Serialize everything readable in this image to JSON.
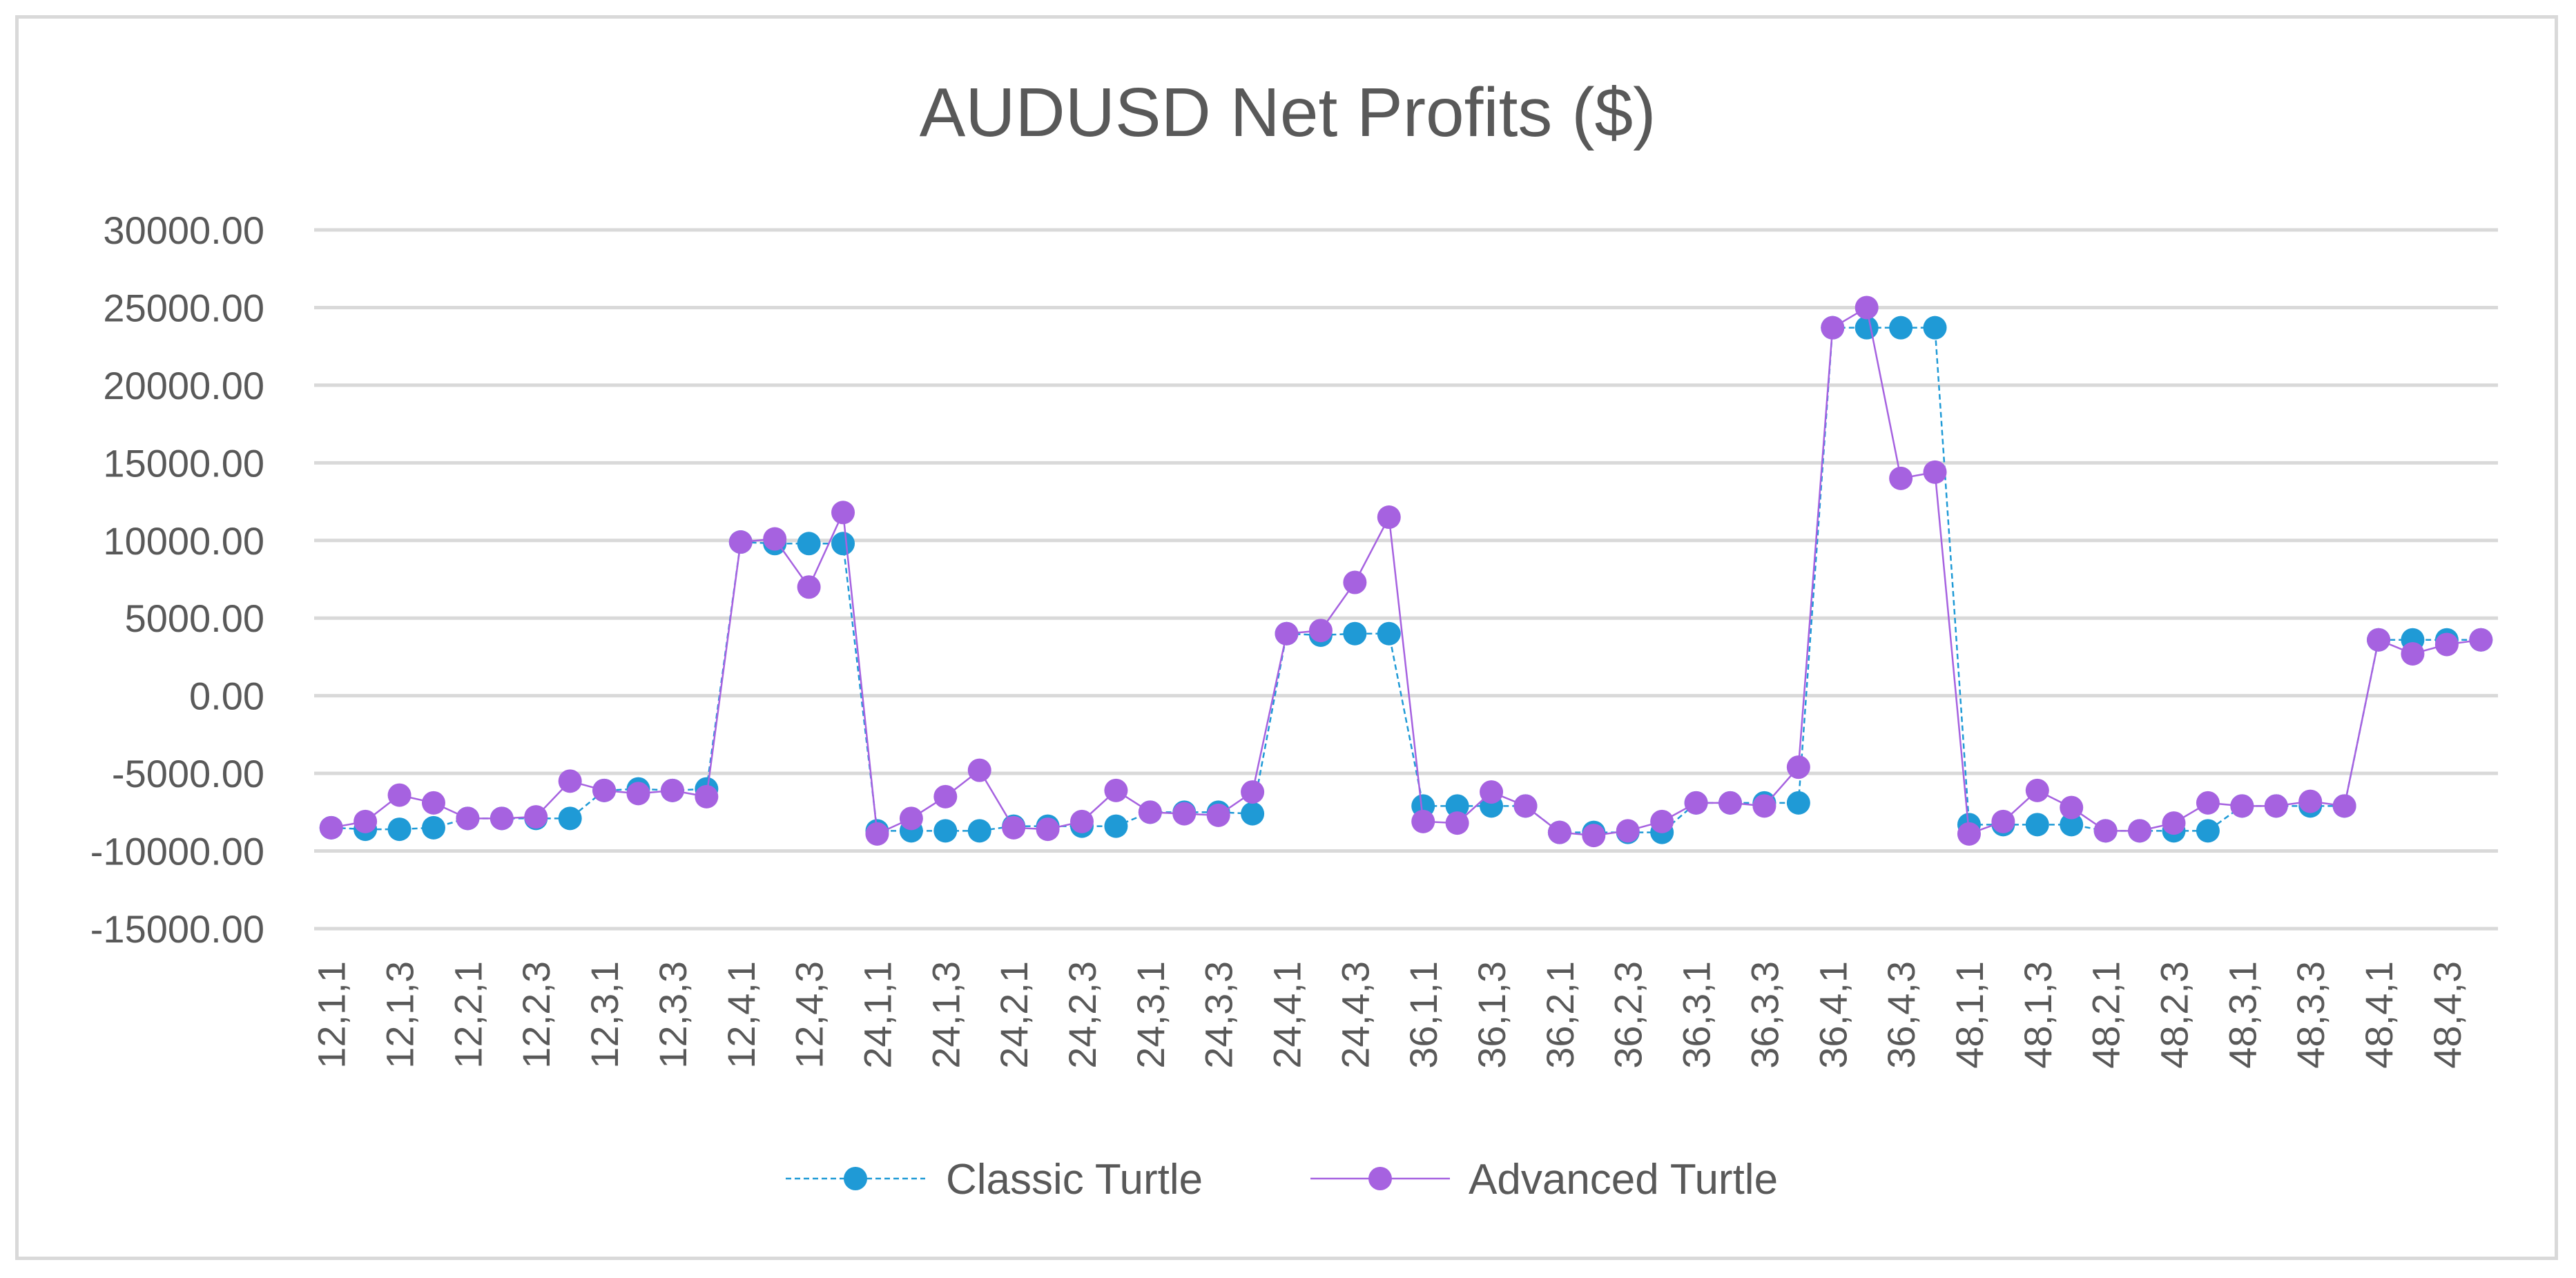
{
  "chart_data": {
    "type": "line",
    "title": "AUDUSD Net Profits ($)",
    "xlabel": "",
    "ylabel": "",
    "ylim": [
      -15000,
      30000
    ],
    "yticks": [
      "30000.00",
      "25000.00",
      "20000.00",
      "15000.00",
      "10000.00",
      "5000.00",
      "0.00",
      "-5000.00",
      "-10000.00",
      "-15000.00"
    ],
    "ytick_values": [
      30000,
      25000,
      20000,
      15000,
      10000,
      5000,
      0,
      -5000,
      -10000,
      -15000
    ],
    "grid": true,
    "legend_position": "bottom",
    "categories": [
      "12,1,1",
      "12,1,2",
      "12,1,3",
      "12,1,4",
      "12,2,1",
      "12,2,2",
      "12,2,3",
      "12,2,4",
      "12,3,1",
      "12,3,2",
      "12,3,3",
      "12,3,4",
      "12,4,1",
      "12,4,2",
      "12,4,3",
      "12,4,4",
      "24,1,1",
      "24,1,2",
      "24,1,3",
      "24,1,4",
      "24,2,1",
      "24,2,2",
      "24,2,3",
      "24,2,4",
      "24,3,1",
      "24,3,2",
      "24,3,3",
      "24,3,4",
      "24,4,1",
      "24,4,2",
      "24,4,3",
      "24,4,4",
      "36,1,1",
      "36,1,2",
      "36,1,3",
      "36,1,4",
      "36,2,1",
      "36,2,2",
      "36,2,3",
      "36,2,4",
      "36,3,1",
      "36,3,2",
      "36,3,3",
      "36,3,4",
      "36,4,1",
      "36,4,2",
      "36,4,3",
      "36,4,4",
      "48,1,1",
      "48,1,2",
      "48,1,3",
      "48,1,4",
      "48,2,1",
      "48,2,2",
      "48,2,3",
      "48,2,4",
      "48,3,1",
      "48,3,2",
      "48,3,3",
      "48,3,4",
      "48,4,1",
      "48,4,2",
      "48,4,3",
      "48,4,4"
    ],
    "visible_x_labels": [
      "12,1,1",
      "12,1,3",
      "12,2,1",
      "12,2,3",
      "12,3,1",
      "12,3,3",
      "12,4,1",
      "12,4,3",
      "24,1,1",
      "24,1,3",
      "24,2,1",
      "24,2,3",
      "24,3,1",
      "24,3,3",
      "24,4,1",
      "24,4,3",
      "36,1,1",
      "36,1,3",
      "36,2,1",
      "36,2,3",
      "36,3,1",
      "36,3,3",
      "36,4,1",
      "36,4,3",
      "48,1,1",
      "48,1,3",
      "48,2,1",
      "48,2,3",
      "48,3,1",
      "48,3,3",
      "48,4,1",
      "48,4,3"
    ],
    "series": [
      {
        "name": "Classic Turtle",
        "color": "#1f9ad6",
        "values": [
          -8500,
          -8600,
          -8600,
          -8500,
          -7900,
          -7900,
          -7900,
          -7900,
          -6100,
          -6000,
          -6100,
          -6000,
          9900,
          9800,
          9800,
          9800,
          -8700,
          -8700,
          -8700,
          -8700,
          -8400,
          -8400,
          -8400,
          -8400,
          -7500,
          -7500,
          -7500,
          -7600,
          4000,
          3900,
          4000,
          4000,
          -7100,
          -7100,
          -7100,
          -7100,
          -8800,
          -8800,
          -8800,
          -8800,
          -6900,
          -6900,
          -6900,
          -6900,
          23700,
          23700,
          23700,
          23700,
          -8300,
          -8300,
          -8300,
          -8300,
          -8700,
          -8700,
          -8700,
          -8700,
          -7100,
          -7100,
          -7100,
          -7100,
          3600,
          3600,
          3600,
          3600
        ]
      },
      {
        "name": "Advanced Turtle",
        "color": "#a662e0",
        "values": [
          -8500,
          -8100,
          -6400,
          -6900,
          -7900,
          -7900,
          -7800,
          -5500,
          -6100,
          -6300,
          -6100,
          -6500,
          9900,
          10100,
          7000,
          11800,
          -8900,
          -7900,
          -6500,
          -4800,
          -8500,
          -8600,
          -8100,
          -6100,
          -7500,
          -7600,
          -7700,
          -6200,
          4000,
          4200,
          7300,
          11500,
          -8100,
          -8200,
          -6200,
          -7100,
          -8800,
          -9000,
          -8700,
          -8100,
          -6900,
          -6900,
          -7100,
          -4600,
          23700,
          25000,
          14000,
          14400,
          -8900,
          -8100,
          -6100,
          -7200,
          -8700,
          -8700,
          -8200,
          -6900,
          -7100,
          -7100,
          -6800,
          -7100,
          3600,
          2700,
          3300,
          3600
        ]
      }
    ]
  }
}
